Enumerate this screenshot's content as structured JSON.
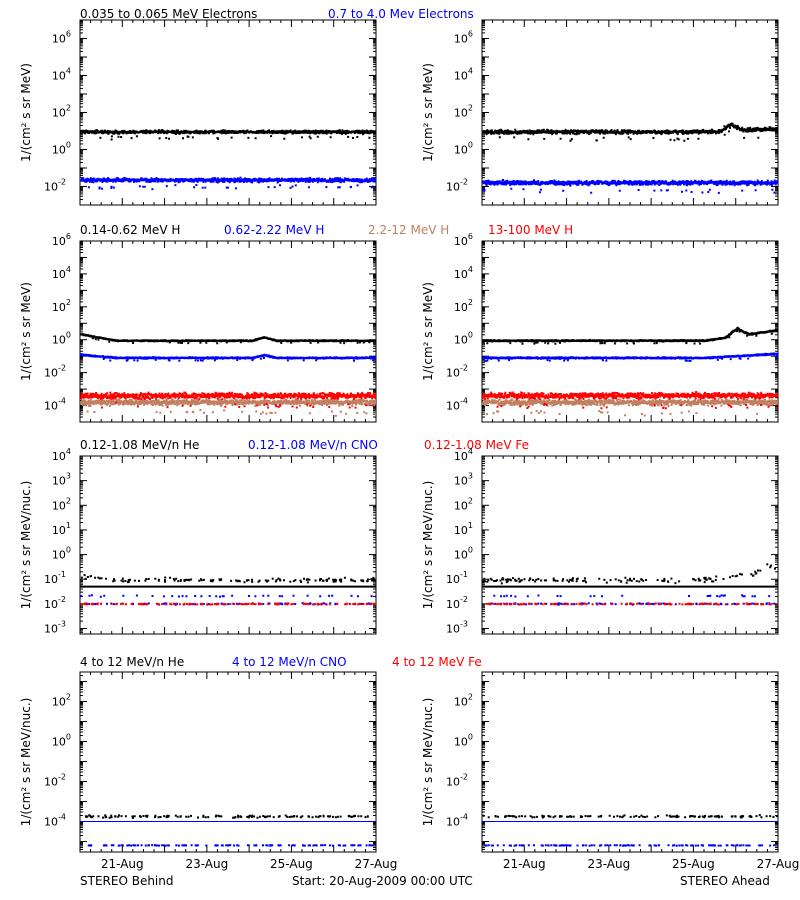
{
  "colors": {
    "black": "#000000",
    "blue": "#0000ff",
    "tan": "#c08060",
    "red": "#ff0000"
  },
  "footer": {
    "left": "STEREO Behind",
    "center": "Start: 20-Aug-2009 00:00 UTC",
    "right": "STEREO Ahead"
  },
  "chart_data": [
    {
      "type": "scatter",
      "row": 1,
      "legend": [
        {
          "text": "0.035 to 0.065 MeV Electrons",
          "color": "#000000"
        },
        {
          "text": "0.7 to 4.0 Mev Electrons",
          "color": "#0000ff"
        }
      ],
      "ylabel": "1/(cm² s sr MeV)",
      "y_scale": "log",
      "ylim": [
        0.001,
        10000000
      ],
      "y_ticks": [
        {
          "label": "10",
          "exp": "6",
          "value": 1000000
        },
        {
          "label": "10",
          "exp": "4",
          "value": 10000
        },
        {
          "label": "10",
          "exp": "2",
          "value": 100
        },
        {
          "label": "10",
          "exp": "0",
          "value": 1
        },
        {
          "label": "10",
          "exp": "-2",
          "value": 0.01
        }
      ],
      "panels": [
        {
          "name": "STEREO Behind",
          "series": [
            {
              "name": "0.035 to 0.065 MeV Electrons",
              "color": "#000000",
              "level": 10,
              "scatter_decades": 0.12
            },
            {
              "name": "0.7 to 4.0 Mev Electrons",
              "color": "#0000ff",
              "level": 0.025,
              "scatter_decades": 0.15
            }
          ]
        },
        {
          "name": "STEREO Ahead",
          "series": [
            {
              "name": "0.035 to 0.065 MeV Electrons",
              "color": "#000000",
              "level": 10,
              "end_level": 15,
              "bump_at": 0.84,
              "bump_level": 25,
              "scatter_decades": 0.15
            },
            {
              "name": "0.7 to 4.0 Mev Electrons",
              "color": "#0000ff",
              "level": 0.018,
              "scatter_decades": 0.17
            }
          ]
        }
      ]
    },
    {
      "type": "scatter",
      "row": 2,
      "legend": [
        {
          "text": "0.14-0.62 MeV H",
          "color": "#000000"
        },
        {
          "text": "0.62-2.22 MeV H",
          "color": "#0000ff"
        },
        {
          "text": "2.2-12 MeV H",
          "color": "#c08060"
        },
        {
          "text": "13-100 MeV H",
          "color": "#ff0000"
        }
      ],
      "ylabel": "1/(cm² s sr MeV)",
      "y_scale": "log",
      "ylim": [
        1e-05,
        1000000
      ],
      "y_ticks": [
        {
          "label": "10",
          "exp": "6",
          "value": 1000000
        },
        {
          "label": "10",
          "exp": "4",
          "value": 10000
        },
        {
          "label": "10",
          "exp": "2",
          "value": 100
        },
        {
          "label": "10",
          "exp": "0",
          "value": 1
        },
        {
          "label": "10",
          "exp": "-2",
          "value": 0.01
        },
        {
          "label": "10",
          "exp": "-4",
          "value": 0.0001
        }
      ],
      "panels": [
        {
          "name": "STEREO Behind",
          "series": [
            {
              "name": "0.14-0.62 MeV H",
              "color": "#000000",
              "level": 1.0,
              "start_level": 2.5,
              "bump_at": 0.62,
              "bump_level": 1.6,
              "scatter_decades": 0.05
            },
            {
              "name": "0.62-2.22 MeV H",
              "color": "#0000ff",
              "level": 0.09,
              "start_level": 0.14,
              "bump_at": 0.62,
              "bump_level": 0.13,
              "scatter_decades": 0.06
            },
            {
              "name": "2.2-12 MeV H",
              "color": "#c08060",
              "level": 0.00018,
              "scatter_decades": 0.25
            },
            {
              "name": "13-100 MeV H",
              "color": "#ff0000",
              "level": 0.00045,
              "scatter_decades": 0.25
            }
          ]
        },
        {
          "name": "STEREO Ahead",
          "series": [
            {
              "name": "0.14-0.62 MeV H",
              "color": "#000000",
              "level": 1.0,
              "end_level": 4.5,
              "bump_at": 0.86,
              "bump_level": 5.5,
              "scatter_decades": 0.06
            },
            {
              "name": "0.62-2.22 MeV H",
              "color": "#0000ff",
              "level": 0.09,
              "end_level": 0.16,
              "scatter_decades": 0.06
            },
            {
              "name": "2.2-12 MeV H",
              "color": "#c08060",
              "level": 0.00018,
              "scatter_decades": 0.25
            },
            {
              "name": "13-100 MeV H",
              "color": "#ff0000",
              "level": 0.00045,
              "scatter_decades": 0.25
            }
          ]
        }
      ]
    },
    {
      "type": "scatter",
      "row": 3,
      "legend": [
        {
          "text": "0.12-1.08 MeV/n He",
          "color": "#000000"
        },
        {
          "text": "0.12-1.08 MeV/n CNO",
          "color": "#0000ff"
        },
        {
          "text": "0.12-1.08 MeV Fe",
          "color": "#ff0000"
        }
      ],
      "ylabel": "1/(cm² s sr MeV/nuc.)",
      "y_scale": "log",
      "ylim": [
        0.0006,
        10000
      ],
      "y_ticks": [
        {
          "label": "10",
          "exp": "4",
          "value": 10000
        },
        {
          "label": "10",
          "exp": "3",
          "value": 1000
        },
        {
          "label": "10",
          "exp": "2",
          "value": 100
        },
        {
          "label": "10",
          "exp": "1",
          "value": 10
        },
        {
          "label": "10",
          "exp": "0",
          "value": 1
        },
        {
          "label": "10",
          "exp": "-1",
          "value": 0.1
        },
        {
          "label": "10",
          "exp": "-2",
          "value": 0.01
        },
        {
          "label": "10",
          "exp": "-3",
          "value": 0.001
        }
      ],
      "panels": [
        {
          "name": "STEREO Behind",
          "series": [
            {
              "name": "0.12-1.08 MeV/n He (background)",
              "color": "#000000",
              "level": 0.05,
              "line": true
            },
            {
              "name": "0.12-1.08 MeV/n He",
              "color": "#000000",
              "level": 0.1,
              "start_level": 0.15,
              "sparse": true,
              "scatter_decades": 0.12
            },
            {
              "name": "0.12-1.08 MeV/n CNO",
              "color": "#0000ff",
              "level": 0.011,
              "sparse": true,
              "upper_level": 0.023,
              "scatter_decades": 0.04
            },
            {
              "name": "0.12-1.08 MeV Fe",
              "color": "#ff0000",
              "level": 0.0108,
              "sparse": true,
              "scatter_decades": 0.03
            }
          ]
        },
        {
          "name": "STEREO Ahead",
          "series": [
            {
              "name": "0.12-1.08 MeV/n He (background)",
              "color": "#000000",
              "level": 0.05,
              "line": true
            },
            {
              "name": "0.12-1.08 MeV/n He",
              "color": "#000000",
              "level": 0.1,
              "end_level": 0.25,
              "bump_at": 0.96,
              "bump_level": 0.4,
              "sparse": true,
              "scatter_decades": 0.14
            },
            {
              "name": "0.12-1.08 MeV/n CNO",
              "color": "#0000ff",
              "level": 0.011,
              "sparse": true,
              "upper_level": 0.023,
              "scatter_decades": 0.04
            },
            {
              "name": "0.12-1.08 MeV Fe",
              "color": "#ff0000",
              "level": 0.0108,
              "sparse": true,
              "scatter_decades": 0.03
            }
          ]
        }
      ]
    },
    {
      "type": "scatter",
      "row": 4,
      "legend": [
        {
          "text": "4 to 12 MeV/n He",
          "color": "#000000"
        },
        {
          "text": "4 to 12 MeV/n CNO",
          "color": "#0000ff"
        },
        {
          "text": "4 to 12 MeV Fe",
          "color": "#ff0000"
        }
      ],
      "ylabel": "1/(cm² s sr MeV/nuc.)",
      "y_scale": "log",
      "ylim": [
        3e-06,
        3000
      ],
      "y_ticks": [
        {
          "label": "10",
          "exp": "2",
          "value": 100
        },
        {
          "label": "10",
          "exp": "0",
          "value": 1
        },
        {
          "label": "10",
          "exp": "-2",
          "value": 0.01
        },
        {
          "label": "10",
          "exp": "-4",
          "value": 0.0001
        }
      ],
      "x_ticks": [
        {
          "label": "21-Aug",
          "value": 1
        },
        {
          "label": "23-Aug",
          "value": 3
        },
        {
          "label": "25-Aug",
          "value": 5
        },
        {
          "label": "27-Aug",
          "value": 7
        }
      ],
      "panels": [
        {
          "name": "STEREO Behind",
          "series": [
            {
              "name": "4 to 12 MeV/n CNO (background)",
              "color": "#0000ff",
              "level": 0.0001,
              "line": true
            },
            {
              "name": "4 to 12 MeV/n He",
              "color": "#000000",
              "level": 0.0002,
              "sparse": true,
              "scatter_decades": 0.08
            },
            {
              "name": "4 to 12 MeV/n CNO",
              "color": "#0000ff",
              "level": 7.2e-06,
              "sparse": true,
              "scatter_decades": 0.02
            }
          ]
        },
        {
          "name": "STEREO Ahead",
          "series": [
            {
              "name": "4 to 12 MeV/n CNO (background)",
              "color": "#0000ff",
              "level": 0.0001,
              "line": true
            },
            {
              "name": "4 to 12 MeV/n He",
              "color": "#000000",
              "level": 0.0002,
              "sparse": true,
              "scatter_decades": 0.08
            },
            {
              "name": "4 to 12 MeV/n CNO",
              "color": "#0000ff",
              "level": 7.2e-06,
              "sparse": true,
              "scatter_decades": 0.02
            }
          ]
        }
      ]
    }
  ],
  "x_axis": {
    "xlim": [
      0,
      7
    ],
    "unit": "days since 20-Aug-2009 00:00 UTC"
  }
}
